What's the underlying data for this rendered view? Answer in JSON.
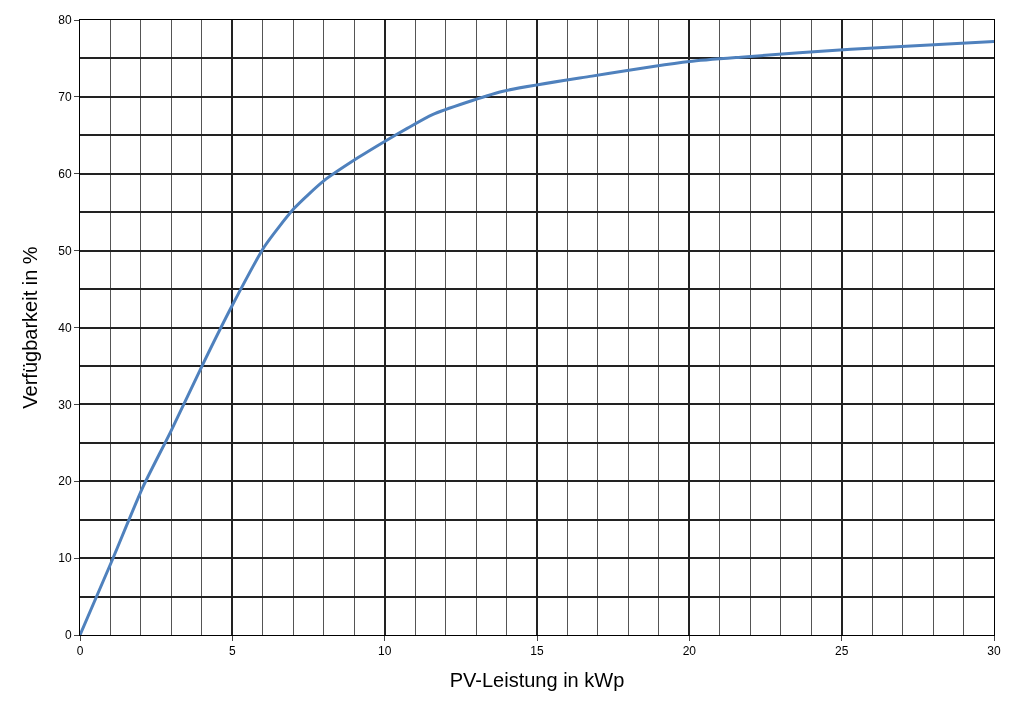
{
  "chart_data": {
    "type": "line",
    "xlabel": "PV-Leistung in kWp",
    "ylabel": "Verfügbarkeit in %",
    "x": [
      0,
      1.01,
      2.06,
      2.97,
      4.09,
      5.0,
      6.05,
      7.03,
      8.01,
      9.13,
      10.04,
      10.74,
      11.57,
      13.85,
      16.8,
      20,
      21.8,
      25.3,
      30
    ],
    "series": [
      {
        "color": "#4f81bd",
        "values": [
          0,
          9.3,
          19.2,
          26.4,
          35.7,
          42.9,
          50.5,
          55.5,
          59.1,
          62.1,
          64.3,
          65.9,
          67.7,
          70.7,
          72.7,
          74.6,
          75.2,
          76.2,
          77.2
        ]
      }
    ],
    "xlim": [
      0,
      30
    ],
    "ylim": [
      0,
      80
    ],
    "xticks": [
      0,
      5,
      10,
      15,
      20,
      25,
      30
    ],
    "yticks": [
      0,
      10,
      20,
      30,
      40,
      50,
      60,
      70,
      80
    ],
    "grid": true,
    "marker": "none",
    "line_style": "solid"
  }
}
